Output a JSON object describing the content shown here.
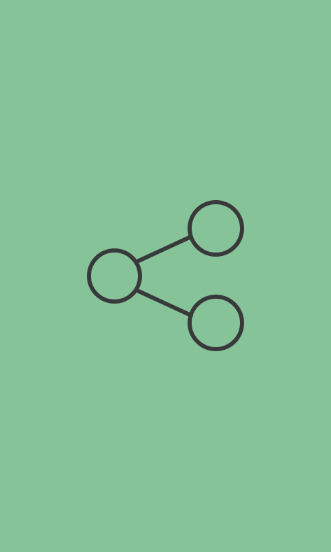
{
  "screen": {
    "background_color": "#87c399"
  },
  "icon": {
    "name": "share-icon",
    "stroke_color": "#38393b"
  }
}
